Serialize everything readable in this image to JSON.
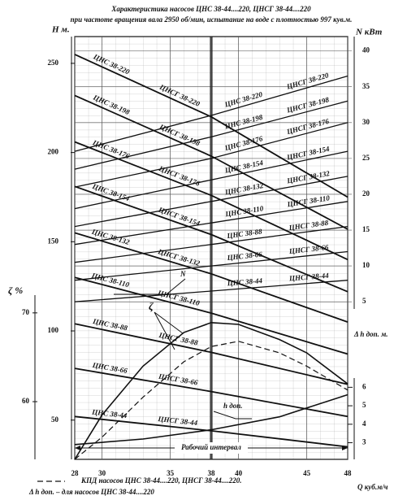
{
  "chart_data": {
    "type": "line",
    "title": "Характеристика  насосов ЦНС   38-44....220, ЦНСГ 38-44....220",
    "subtitle": "при частоте вращения вала 2950 об/мин,  испытание на воде с плотностью 997 кув.м.",
    "ylabel": "H  м.",
    "y2label": "N кВт",
    "eta_label": "ζ %",
    "dh_label": "Δ  h доп. м.",
    "xlabel": "Q куб.м/ч",
    "xlim": [
      28,
      48
    ],
    "xticks": [
      28,
      30,
      35,
      38,
      40,
      45,
      48
    ],
    "ylim": [
      28,
      265
    ],
    "yticks": [
      50,
      100,
      150,
      200,
      250
    ],
    "y2lim": [
      4,
      42
    ],
    "y2ticks": [
      5,
      10,
      15,
      20,
      25,
      30,
      35,
      40
    ],
    "eta_lim": [
      53.5,
      72
    ],
    "eta_ticks": [
      60,
      70
    ],
    "dh_lim": [
      2.1,
      6.5
    ],
    "dh_ticks": [
      3,
      4,
      5,
      6
    ],
    "grid": true,
    "x": [
      28,
      38,
      48
    ],
    "pumps": [
      {
        "labels": [
          "ЦНС  38-220",
          "ЦНСГ  38-220"
        ],
        "H": [
          255,
          220,
          175
        ],
        "N": [
          26,
          31,
          36.5
        ]
      },
      {
        "labels": [
          "ЦНС  38-198",
          "ЦНСГ  38-198"
        ],
        "H": [
          232,
          198,
          157
        ],
        "N": [
          23.5,
          28,
          33
        ]
      },
      {
        "labels": [
          "ЦНС  38-176",
          "ЦНСГ  38-176"
        ],
        "H": [
          206,
          176,
          140
        ],
        "N": [
          21,
          25,
          30
        ]
      },
      {
        "labels": [
          "ЦНС  38-154",
          "ЦНСГ  38-154"
        ],
        "H": [
          181,
          154,
          122
        ],
        "N": [
          18,
          22,
          26
        ]
      },
      {
        "labels": [
          "ЦНС  38-132",
          "ЦНСГ  38-132"
        ],
        "H": [
          155,
          132,
          105
        ],
        "N": [
          15.5,
          19,
          22.5
        ]
      },
      {
        "labels": [
          "ЦНС  38-110",
          "ЦНСГ  38-110"
        ],
        "H": [
          130,
          110,
          87
        ],
        "N": [
          13,
          16,
          19
        ]
      },
      {
        "labels": [
          "ЦНС  38-88",
          "ЦНСГ  38-88"
        ],
        "H": [
          104,
          88,
          70
        ],
        "N": [
          10.5,
          13,
          15.5
        ]
      },
      {
        "labels": [
          "ЦНС  38-66",
          "ЦНСГ  38-66"
        ],
        "H": [
          79,
          66,
          52
        ],
        "N": [
          8,
          10,
          12
        ]
      },
      {
        "labels": [
          "ЦНС  38-44",
          "ЦНСГ  38-44"
        ],
        "H": [
          52,
          44,
          35
        ],
        "N": [
          5,
          6.5,
          8
        ]
      }
    ],
    "efficiency": {
      "x": [
        28,
        30,
        33,
        36,
        38,
        40,
        43,
        45,
        48
      ],
      "solid": [
        53.5,
        58.5,
        64,
        67.8,
        68.9,
        68.7,
        67,
        65.5,
        62
      ],
      "dashed": [
        53.5,
        56,
        60.5,
        64.5,
        66.2,
        66.8,
        65.5,
        64,
        61.3
      ],
      "label": "ζ"
    },
    "npsh": {
      "x": [
        28,
        33,
        38,
        43,
        48
      ],
      "values": [
        2.9,
        3.2,
        3.7,
        4.4,
        5.6
      ],
      "label": "h доп."
    },
    "power_label": "N",
    "working_range": {
      "label": "Рабочий интервал",
      "from": 28,
      "to": 48
    },
    "design_q": 38,
    "legend": [
      "КПД насосов ЦНС   38-44....220,  ЦНСГ 38-44....220.",
      "Δ  h доп.  – для насосов ЦНС 38-44....220"
    ]
  }
}
